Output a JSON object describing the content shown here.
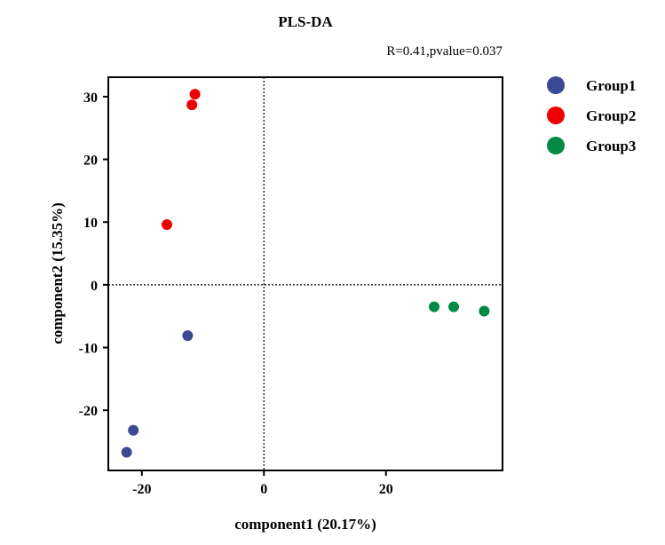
{
  "chart_data": {
    "type": "scatter",
    "title": "PLS-DA",
    "subtitle": "R=0.41,pvalue=0.037",
    "xlabel": "component1 (20.17%)",
    "ylabel": "component2 (15.35%)",
    "xlim": [
      -25.5,
      39.1
    ],
    "ylim": [
      -29.6,
      33.1
    ],
    "xticks": [
      -20,
      0,
      20
    ],
    "yticks": [
      30,
      20,
      10,
      0,
      -10,
      -20
    ],
    "grid": false,
    "reference_lines": {
      "x": 0,
      "y": 0,
      "style": "dotted"
    },
    "legend_position": "right",
    "series": [
      {
        "name": "Group1",
        "color": "#3B4992",
        "points": [
          [
            -12.5,
            -8.1
          ],
          [
            -21.4,
            -23.2
          ],
          [
            -22.5,
            -26.7
          ]
        ]
      },
      {
        "name": "Group2",
        "color": "#EE0000",
        "points": [
          [
            -11.3,
            30.4
          ],
          [
            -11.8,
            28.7
          ],
          [
            -15.9,
            9.6
          ]
        ]
      },
      {
        "name": "Group3",
        "color": "#008B45",
        "points": [
          [
            27.9,
            -3.5
          ],
          [
            31.1,
            -3.5
          ],
          [
            36.1,
            -4.2
          ]
        ]
      }
    ]
  }
}
